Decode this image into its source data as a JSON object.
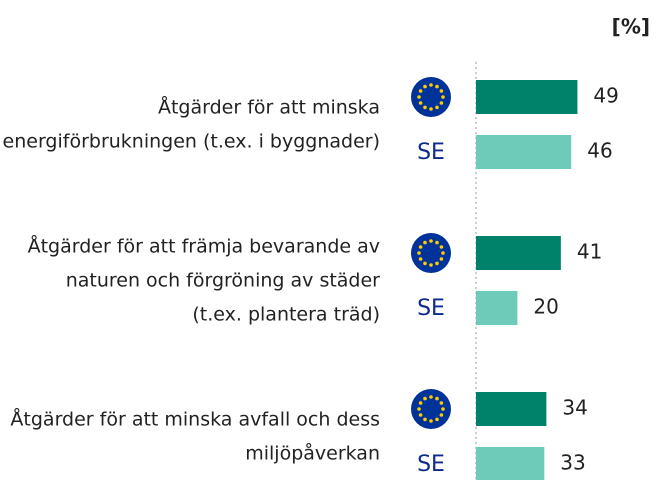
{
  "chart_data": {
    "type": "bar",
    "orientation": "horizontal",
    "unit_label": "[%]",
    "categories": [
      [
        "Åtgärder för att minska",
        "energiförbrukningen (t.ex. i byggnader)"
      ],
      [
        "Åtgärder för att främja bevarande av",
        "naturen och förgröning av städer",
        "(t.ex. plantera träd)"
      ],
      [
        "Åtgärder för att minska avfall och dess",
        "miljöpåverkan"
      ]
    ],
    "series": [
      {
        "color": "#00826a",
        "values": [
          49,
          41,
          34
        ]
      },
      {
        "name": "SE",
        "color": "#6fcbb9",
        "values": [
          46,
          20,
          33
        ]
      }
    ]
  }
}
